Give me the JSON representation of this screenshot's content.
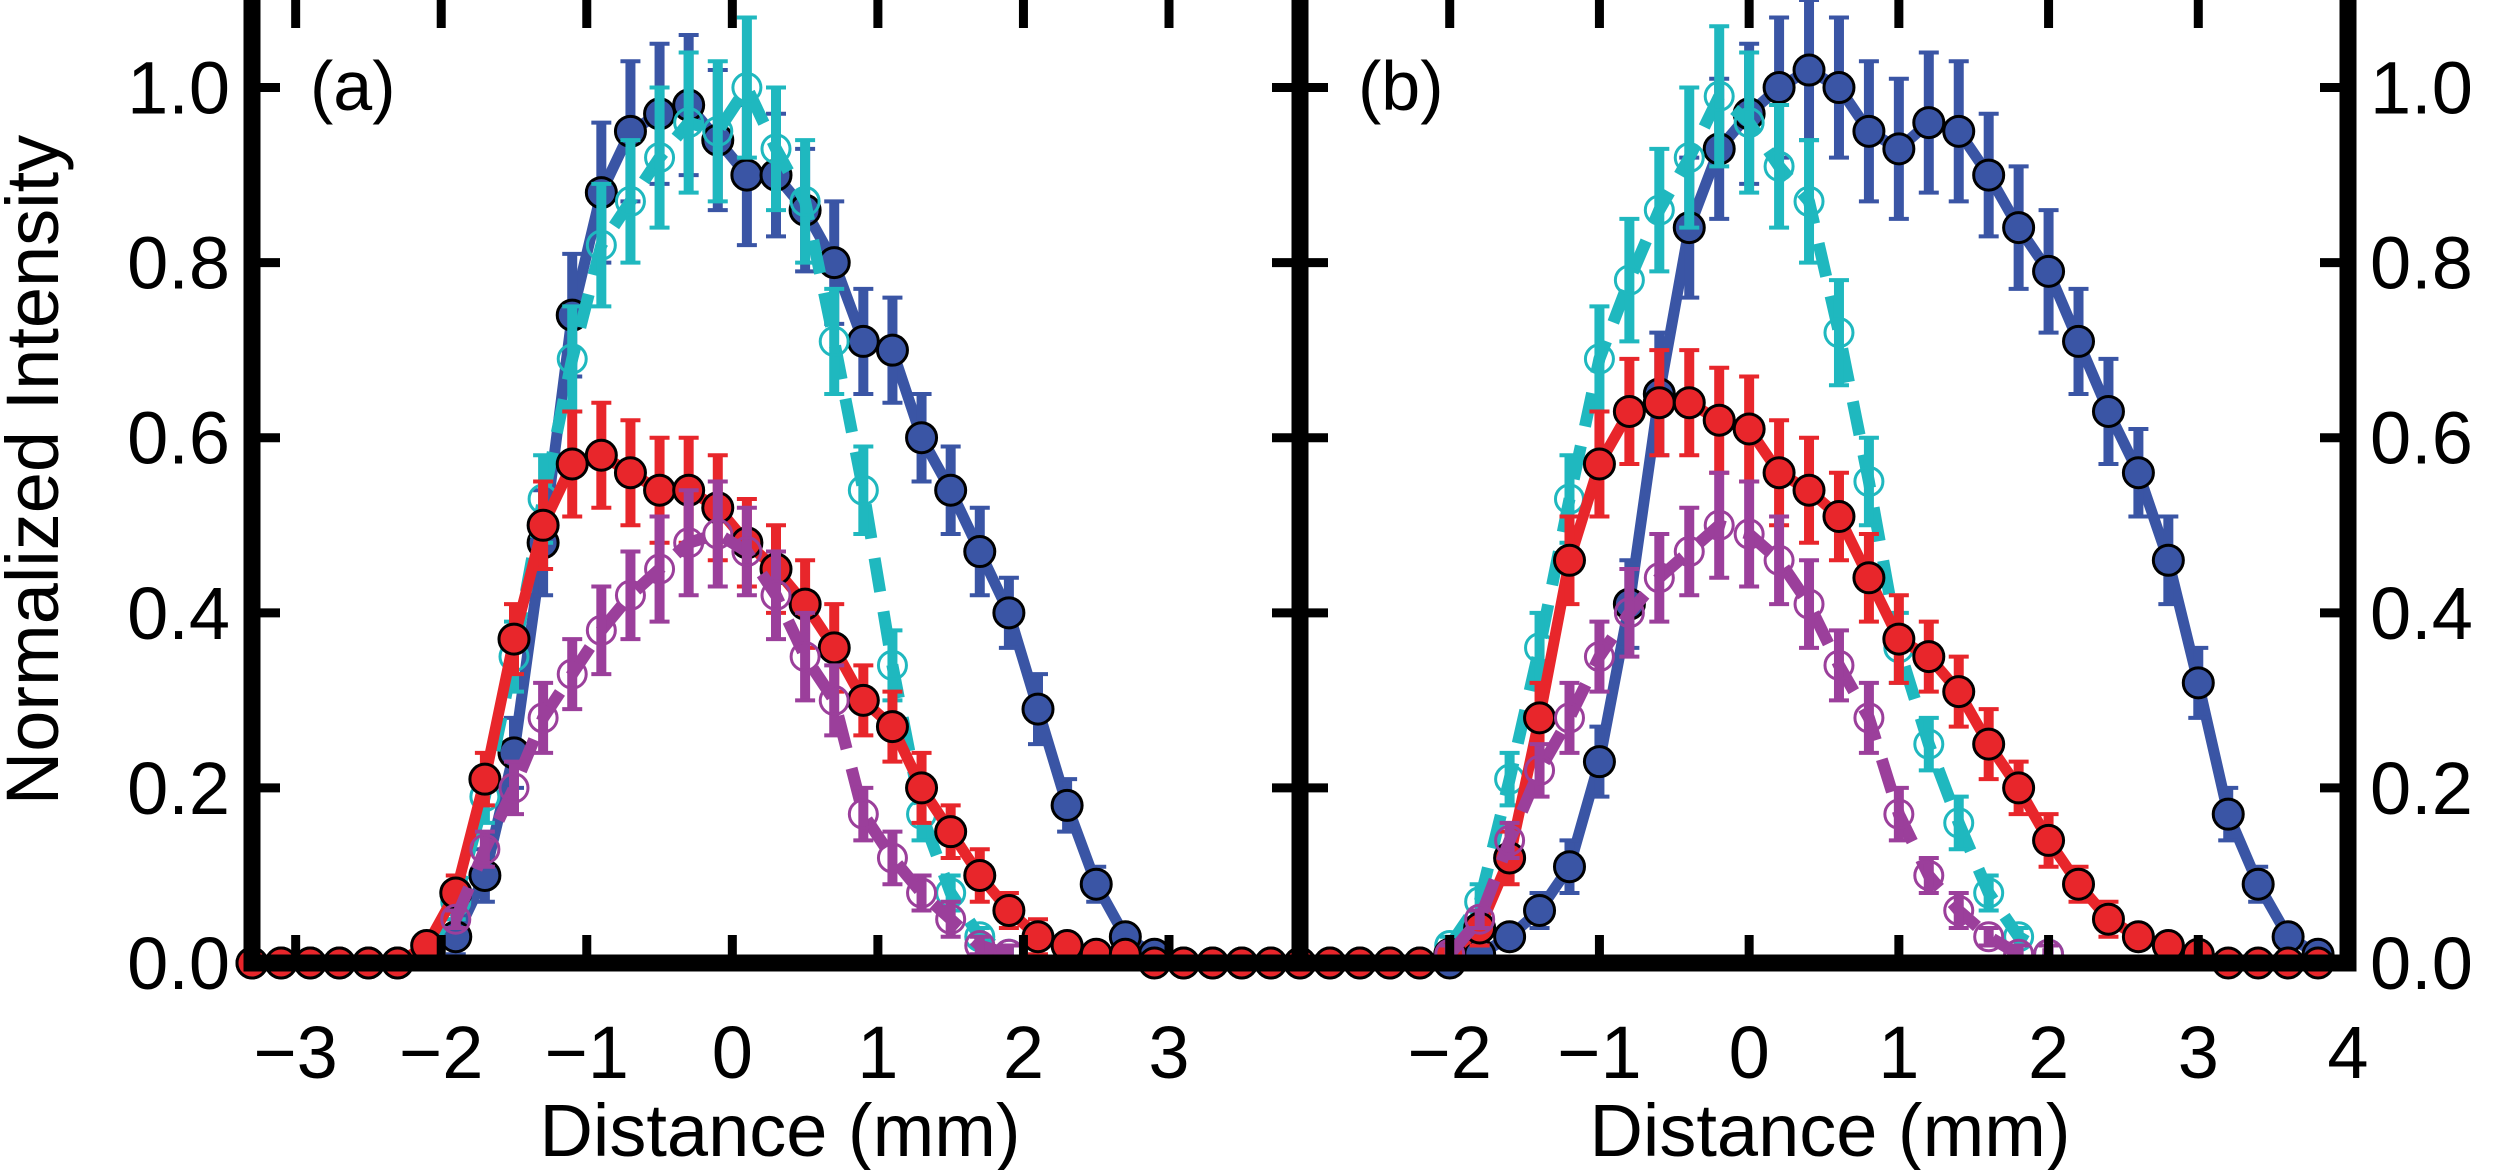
{
  "chart_data": [
    {
      "type": "line",
      "panel_label": "(a)",
      "xlabel": "Distance (mm)",
      "ylabel": "Normalized Intensity",
      "xlim": [
        -3.3,
        3.9
      ],
      "ylim": [
        0,
        1.1
      ],
      "xticks": [
        -3,
        -2,
        -1,
        0,
        1,
        2,
        3
      ],
      "xtick_labels": [
        "−3",
        "−2",
        "−1",
        "0",
        "1",
        "2",
        "3"
      ],
      "yticks": [
        0,
        0.2,
        0.4,
        0.6,
        0.8,
        1.0
      ],
      "ytick_labels": [
        "0.0",
        "0.2",
        "0.4",
        "0.6",
        "0.8",
        "1.0"
      ],
      "series": [
        {
          "name": "blue",
          "color": "#3a55a5",
          "line": "solid",
          "marker": "filled",
          "x": [
            -3.3,
            -3.1,
            -2.9,
            -2.7,
            -2.5,
            -2.3,
            -2.1,
            -1.9,
            -1.7,
            -1.5,
            -1.3,
            -1.1,
            -0.9,
            -0.7,
            -0.5,
            -0.3,
            -0.1,
            0.1,
            0.3,
            0.5,
            0.7,
            0.9,
            1.1,
            1.3,
            1.5,
            1.7,
            1.9,
            2.1,
            2.3,
            2.5,
            2.7,
            2.9,
            3.1,
            3.3,
            3.5,
            3.7
          ],
          "y": [
            0,
            0,
            0,
            0,
            0,
            0,
            0.01,
            0.03,
            0.1,
            0.24,
            0.48,
            0.74,
            0.88,
            0.95,
            0.97,
            0.98,
            0.94,
            0.9,
            0.9,
            0.86,
            0.8,
            0.71,
            0.7,
            0.6,
            0.54,
            0.47,
            0.4,
            0.29,
            0.18,
            0.09,
            0.03,
            0.01,
            0,
            0,
            0,
            0
          ],
          "err": [
            0,
            0,
            0,
            0,
            0,
            0,
            0.01,
            0.02,
            0.03,
            0.04,
            0.06,
            0.07,
            0.08,
            0.08,
            0.08,
            0.08,
            0.08,
            0.08,
            0.07,
            0.07,
            0.07,
            0.06,
            0.06,
            0.05,
            0.05,
            0.05,
            0.04,
            0.04,
            0.03,
            0.02,
            0.01,
            0.01,
            0,
            0,
            0,
            0
          ]
        },
        {
          "name": "cyan",
          "color": "#1fb8bf",
          "line": "dashed",
          "marker": "open",
          "x": [
            -2.1,
            -1.9,
            -1.7,
            -1.5,
            -1.3,
            -1.1,
            -0.9,
            -0.7,
            -0.5,
            -0.3,
            -0.1,
            0.1,
            0.3,
            0.5,
            0.7,
            0.9,
            1.1,
            1.3,
            1.5,
            1.7,
            1.9
          ],
          "y": [
            0.01,
            0.07,
            0.19,
            0.35,
            0.53,
            0.69,
            0.82,
            0.87,
            0.92,
            0.96,
            0.95,
            1.0,
            0.93,
            0.87,
            0.71,
            0.54,
            0.34,
            0.17,
            0.08,
            0.03,
            0.01
          ],
          "err": [
            0.01,
            0.02,
            0.03,
            0.04,
            0.05,
            0.06,
            0.07,
            0.07,
            0.08,
            0.08,
            0.08,
            0.08,
            0.07,
            0.07,
            0.06,
            0.05,
            0.04,
            0.03,
            0.02,
            0.01,
            0.01
          ]
        },
        {
          "name": "red",
          "color": "#e8262b",
          "line": "solid",
          "marker": "filled",
          "x": [
            -3.3,
            -3.1,
            -2.9,
            -2.7,
            -2.5,
            -2.3,
            -2.1,
            -1.9,
            -1.7,
            -1.5,
            -1.3,
            -1.1,
            -0.9,
            -0.7,
            -0.5,
            -0.3,
            -0.1,
            0.1,
            0.3,
            0.5,
            0.7,
            0.9,
            1.1,
            1.3,
            1.5,
            1.7,
            1.9,
            2.1,
            2.3,
            2.5,
            2.7,
            2.9,
            3.1,
            3.3,
            3.5,
            3.7
          ],
          "y": [
            0,
            0,
            0,
            0,
            0,
            0,
            0.02,
            0.08,
            0.21,
            0.37,
            0.5,
            0.57,
            0.58,
            0.56,
            0.54,
            0.54,
            0.52,
            0.48,
            0.45,
            0.41,
            0.36,
            0.3,
            0.27,
            0.2,
            0.15,
            0.1,
            0.06,
            0.03,
            0.02,
            0.01,
            0.01,
            0,
            0,
            0,
            0,
            0
          ],
          "err": [
            0,
            0,
            0,
            0,
            0,
            0,
            0.01,
            0.02,
            0.03,
            0.04,
            0.05,
            0.06,
            0.06,
            0.06,
            0.06,
            0.06,
            0.06,
            0.05,
            0.05,
            0.05,
            0.05,
            0.04,
            0.04,
            0.04,
            0.03,
            0.03,
            0.02,
            0.02,
            0.01,
            0.01,
            0.01,
            0,
            0,
            0,
            0,
            0
          ]
        },
        {
          "name": "purple",
          "color": "#9b3f9b",
          "line": "dashed",
          "marker": "open",
          "x": [
            -1.9,
            -1.7,
            -1.5,
            -1.3,
            -1.1,
            -0.9,
            -0.7,
            -0.5,
            -0.3,
            -0.1,
            0.1,
            0.3,
            0.5,
            0.7,
            0.9,
            1.1,
            1.3,
            1.5,
            1.7,
            1.9
          ],
          "y": [
            0.05,
            0.13,
            0.2,
            0.28,
            0.33,
            0.38,
            0.42,
            0.45,
            0.48,
            0.49,
            0.47,
            0.42,
            0.35,
            0.3,
            0.17,
            0.12,
            0.08,
            0.05,
            0.02,
            0.01
          ],
          "err": [
            0.01,
            0.02,
            0.03,
            0.04,
            0.04,
            0.05,
            0.05,
            0.06,
            0.06,
            0.06,
            0.05,
            0.05,
            0.05,
            0.04,
            0.03,
            0.03,
            0.02,
            0.02,
            0.01,
            0.01
          ]
        }
      ]
    },
    {
      "type": "line",
      "panel_label": "(b)",
      "xlabel": "Distance (mm)",
      "ylabel": "",
      "xlim": [
        -3.0,
        4.0
      ],
      "ylim": [
        0,
        1.1
      ],
      "xticks": [
        -2,
        -1,
        0,
        1,
        2,
        3,
        4
      ],
      "xtick_labels": [
        "−2",
        "−1",
        "0",
        "1",
        "2",
        "3",
        "4"
      ],
      "yticks": [
        0,
        0.2,
        0.4,
        0.6,
        0.8,
        1.0
      ],
      "ytick_labels": [
        "0.0",
        "0.2",
        "0.4",
        "0.6",
        "0.8",
        "1.0"
      ],
      "series": [
        {
          "name": "blue",
          "color": "#3a55a5",
          "line": "solid",
          "marker": "filled",
          "x": [
            -3.0,
            -2.8,
            -2.6,
            -2.4,
            -2.2,
            -2.0,
            -1.8,
            -1.6,
            -1.4,
            -1.2,
            -1.0,
            -0.8,
            -0.6,
            -0.4,
            -0.2,
            0.0,
            0.2,
            0.4,
            0.6,
            0.8,
            1.0,
            1.2,
            1.4,
            1.6,
            1.8,
            2.0,
            2.2,
            2.4,
            2.6,
            2.8,
            3.0,
            3.2,
            3.4,
            3.6,
            3.8
          ],
          "y": [
            0,
            0,
            0,
            0,
            0,
            0,
            0.01,
            0.03,
            0.06,
            0.11,
            0.23,
            0.41,
            0.65,
            0.84,
            0.93,
            0.97,
            1.0,
            1.02,
            1.0,
            0.95,
            0.93,
            0.96,
            0.95,
            0.9,
            0.84,
            0.79,
            0.71,
            0.63,
            0.56,
            0.46,
            0.32,
            0.17,
            0.09,
            0.03,
            0.01
          ],
          "err": [
            0,
            0,
            0,
            0,
            0,
            0,
            0.01,
            0.01,
            0.02,
            0.03,
            0.04,
            0.05,
            0.07,
            0.08,
            0.08,
            0.08,
            0.08,
            0.08,
            0.08,
            0.08,
            0.08,
            0.08,
            0.08,
            0.07,
            0.07,
            0.07,
            0.06,
            0.06,
            0.05,
            0.05,
            0.04,
            0.03,
            0.02,
            0.01,
            0.01
          ]
        },
        {
          "name": "cyan",
          "color": "#1fb8bf",
          "line": "dashed",
          "marker": "open",
          "x": [
            -2.0,
            -1.8,
            -1.6,
            -1.4,
            -1.2,
            -1.0,
            -0.8,
            -0.6,
            -0.4,
            -0.2,
            0.0,
            0.2,
            0.4,
            0.6,
            0.8,
            1.0,
            1.2,
            1.4,
            1.6,
            1.8,
            2.0
          ],
          "y": [
            0.02,
            0.07,
            0.21,
            0.36,
            0.53,
            0.69,
            0.78,
            0.86,
            0.92,
            0.99,
            0.96,
            0.91,
            0.87,
            0.72,
            0.55,
            0.36,
            0.25,
            0.16,
            0.08,
            0.03,
            0.01
          ],
          "err": [
            0.01,
            0.02,
            0.03,
            0.04,
            0.05,
            0.06,
            0.07,
            0.07,
            0.08,
            0.08,
            0.08,
            0.07,
            0.07,
            0.06,
            0.05,
            0.04,
            0.03,
            0.03,
            0.02,
            0.01,
            0.01
          ]
        },
        {
          "name": "red",
          "color": "#e8262b",
          "line": "solid",
          "marker": "filled",
          "x": [
            -3.0,
            -2.8,
            -2.6,
            -2.4,
            -2.2,
            -2.0,
            -1.8,
            -1.6,
            -1.4,
            -1.2,
            -1.0,
            -0.8,
            -0.6,
            -0.4,
            -0.2,
            0.0,
            0.2,
            0.4,
            0.6,
            0.8,
            1.0,
            1.2,
            1.4,
            1.6,
            1.8,
            2.0,
            2.2,
            2.4,
            2.6,
            2.8,
            3.0,
            3.2,
            3.4,
            3.6,
            3.8
          ],
          "y": [
            0,
            0,
            0,
            0,
            0,
            0.01,
            0.04,
            0.12,
            0.28,
            0.46,
            0.57,
            0.63,
            0.64,
            0.64,
            0.62,
            0.61,
            0.56,
            0.54,
            0.51,
            0.44,
            0.37,
            0.35,
            0.31,
            0.25,
            0.2,
            0.14,
            0.09,
            0.05,
            0.03,
            0.02,
            0.01,
            0,
            0,
            0,
            0
          ],
          "err": [
            0,
            0,
            0,
            0,
            0,
            0.01,
            0.02,
            0.03,
            0.04,
            0.05,
            0.06,
            0.06,
            0.06,
            0.06,
            0.06,
            0.06,
            0.06,
            0.06,
            0.05,
            0.05,
            0.05,
            0.04,
            0.04,
            0.04,
            0.03,
            0.03,
            0.02,
            0.02,
            0.01,
            0.01,
            0.01,
            0,
            0,
            0,
            0
          ]
        },
        {
          "name": "purple",
          "color": "#9b3f9b",
          "line": "dashed",
          "marker": "open",
          "x": [
            -2.0,
            -1.8,
            -1.6,
            -1.4,
            -1.2,
            -1.0,
            -0.8,
            -0.6,
            -0.4,
            -0.2,
            0.0,
            0.2,
            0.4,
            0.6,
            0.8,
            1.0,
            1.2,
            1.4,
            1.6,
            1.8,
            2.0
          ],
          "y": [
            0.01,
            0.05,
            0.14,
            0.22,
            0.28,
            0.35,
            0.4,
            0.44,
            0.47,
            0.5,
            0.49,
            0.46,
            0.41,
            0.34,
            0.28,
            0.17,
            0.1,
            0.06,
            0.03,
            0.01,
            0.01
          ],
          "err": [
            0.01,
            0.01,
            0.02,
            0.03,
            0.04,
            0.04,
            0.05,
            0.05,
            0.05,
            0.06,
            0.06,
            0.05,
            0.05,
            0.04,
            0.04,
            0.03,
            0.02,
            0.02,
            0.01,
            0.01,
            0.01
          ]
        }
      ]
    }
  ]
}
